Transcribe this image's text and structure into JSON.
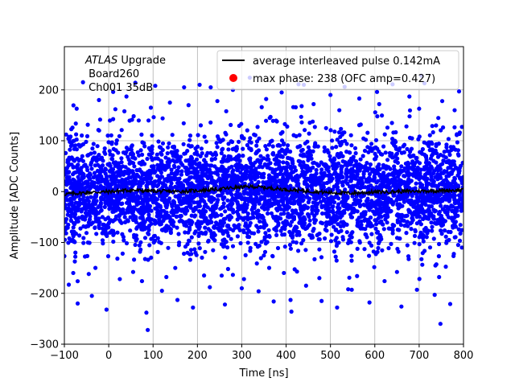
{
  "chart_data": {
    "type": "scatter",
    "title": "",
    "xlabel": "Time [ns]",
    "ylabel": "Amplitude [ADC Counts]",
    "xlim": [
      -100,
      800
    ],
    "ylim": [
      -300,
      285
    ],
    "xticks": [
      -100,
      0,
      100,
      200,
      300,
      400,
      500,
      600,
      700,
      800
    ],
    "yticks": [
      -300,
      -200,
      -100,
      0,
      100,
      200
    ],
    "grid": true,
    "legend_position": "top-right",
    "annotation": {
      "line1_italic": "ATLAS",
      "line1_rest": " Upgrade",
      "line2": " Board260",
      "line3": " Ch001 35dB"
    },
    "series": [
      {
        "name": "average interleaved pulse 0.142mA",
        "kind": "line",
        "color": "#000000",
        "x": [
          -100,
          -50,
          0,
          50,
          100,
          150,
          200,
          250,
          300,
          325,
          350,
          400,
          450,
          500,
          550,
          600,
          650,
          700,
          750,
          800
        ],
        "y": [
          -5,
          -2,
          0,
          3,
          1,
          0,
          2,
          5,
          9,
          10,
          8,
          4,
          1,
          -2,
          -3,
          -1,
          0,
          1,
          2,
          3
        ]
      },
      {
        "name": "max phase: 238 (OFC amp=0.427)",
        "kind": "marker",
        "color": "#ff0000",
        "x": [],
        "y": []
      },
      {
        "name": "",
        "kind": "scatter",
        "color": "#0000ff",
        "outliers": {
          "x": [
            -90,
            -70,
            -58,
            -45,
            -38,
            -22,
            -5,
            10,
            25,
            40,
            60,
            75,
            88,
            105,
            120,
            138,
            155,
            170,
            190,
            205,
            228,
            245,
            262,
            280,
            300,
            318,
            338,
            355,
            372,
            390,
            412,
            428,
            445,
            462,
            480,
            500,
            515,
            532,
            548,
            565,
            588,
            605,
            622,
            640,
            660,
            678,
            695,
            712,
            735,
            752,
            770,
            790,
            -80,
            -30,
            15,
            55,
            95,
            130,
            180,
            215,
            265,
            305,
            345,
            395,
            435,
            475,
            520,
            560,
            610,
            650,
            700,
            745,
            780,
            85,
            410,
            540,
            748,
            705,
            440,
            230
          ],
          "y": [
            -183,
            -220,
            215,
            -162,
            -205,
            180,
            -232,
            196,
            -172,
            187,
            214,
            -176,
            -272,
            208,
            -195,
            175,
            -213,
            205,
            -228,
            210,
            -188,
            178,
            -222,
            200,
            -190,
            224,
            -196,
            182,
            -216,
            195,
            -236,
            211,
            -185,
            172,
            -215,
            190,
            -228,
            206,
            -193,
            183,
            -218,
            196,
            -176,
            211,
            -226,
            187,
            -193,
            213,
            -203,
            178,
            -221,
            197,
            -160,
            -150,
            162,
            -158,
            165,
            -168,
            170,
            -165,
            158,
            -172,
            166,
            -160,
            168,
            -170,
            160,
            -166,
            172,
            -158,
            163,
            -168,
            160,
            -238,
            -213,
            -192,
            -260,
            228,
            210,
            205
          ]
        }
      }
    ]
  }
}
